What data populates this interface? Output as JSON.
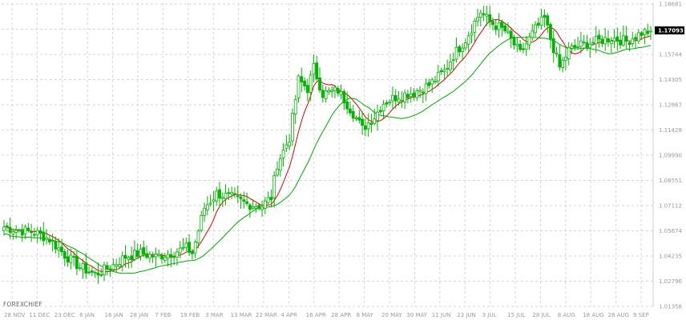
{
  "watermark": "FOREXCHIEF",
  "chart_data": {
    "type": "candlestick",
    "y_ticks": [
      "1.18681",
      "1.17093",
      "1.15744",
      "1.14305",
      "1.12867",
      "1.11428",
      "1.09990",
      "1.08551",
      "1.07112",
      "1.05674",
      "1.04235",
      "1.02796",
      "1.01358"
    ],
    "ylim": [
      1.01358,
      1.18681
    ],
    "current_price": "1.17093",
    "x_ticks": [
      "28 NOV",
      "11 DEC",
      "23 DEC",
      "6 JAN",
      "16 JAN",
      "28 JAN",
      "7 FEB",
      "19 FEB",
      "3 MAR",
      "13 MAR",
      "22 MAR",
      "4 APR",
      "16 APR",
      "28 APR",
      "8 MAY",
      "20 MAY",
      "30 MAY",
      "11 JUN",
      "23 JUN",
      "3 JUL",
      "15 JUL",
      "28 JUL",
      "8 AUG",
      "18 AUG",
      "28 AUG",
      "9 SEP"
    ],
    "close_anchors": [
      [
        0,
        1.059
      ],
      [
        5,
        1.057
      ],
      [
        10,
        1.056
      ],
      [
        15,
        1.052
      ],
      [
        20,
        1.043
      ],
      [
        25,
        1.036
      ],
      [
        30,
        1.032
      ],
      [
        35,
        1.036
      ],
      [
        40,
        1.042
      ],
      [
        45,
        1.044
      ],
      [
        50,
        1.042
      ],
      [
        55,
        1.044
      ],
      [
        60,
        1.047
      ],
      [
        62,
        1.044
      ],
      [
        66,
        1.07
      ],
      [
        70,
        1.078
      ],
      [
        75,
        1.076
      ],
      [
        80,
        1.072
      ],
      [
        85,
        1.071
      ],
      [
        88,
        1.076
      ],
      [
        90,
        1.095
      ],
      [
        94,
        1.11
      ],
      [
        97,
        1.143
      ],
      [
        100,
        1.138
      ],
      [
        102,
        1.15
      ],
      [
        105,
        1.135
      ],
      [
        110,
        1.137
      ],
      [
        115,
        1.124
      ],
      [
        118,
        1.115
      ],
      [
        122,
        1.122
      ],
      [
        125,
        1.13
      ],
      [
        130,
        1.134
      ],
      [
        135,
        1.136
      ],
      [
        140,
        1.14
      ],
      [
        145,
        1.148
      ],
      [
        148,
        1.157
      ],
      [
        152,
        1.166
      ],
      [
        155,
        1.176
      ],
      [
        157,
        1.182
      ],
      [
        160,
        1.176
      ],
      [
        165,
        1.171
      ],
      [
        170,
        1.158
      ],
      [
        175,
        1.172
      ],
      [
        178,
        1.178
      ],
      [
        181,
        1.161
      ],
      [
        183,
        1.15
      ],
      [
        186,
        1.16
      ],
      [
        190,
        1.163
      ],
      [
        195,
        1.165
      ],
      [
        200,
        1.167
      ],
      [
        205,
        1.165
      ],
      [
        210,
        1.17
      ],
      [
        213,
        1.1709
      ]
    ],
    "ma_fast": "red",
    "ma_slow": "green"
  },
  "colors": {
    "candle": "#00b400",
    "ma_fast": "#e00000",
    "ma_slow": "#00a800",
    "grid": "#d6d6d6",
    "badge_bg": "#000000"
  }
}
